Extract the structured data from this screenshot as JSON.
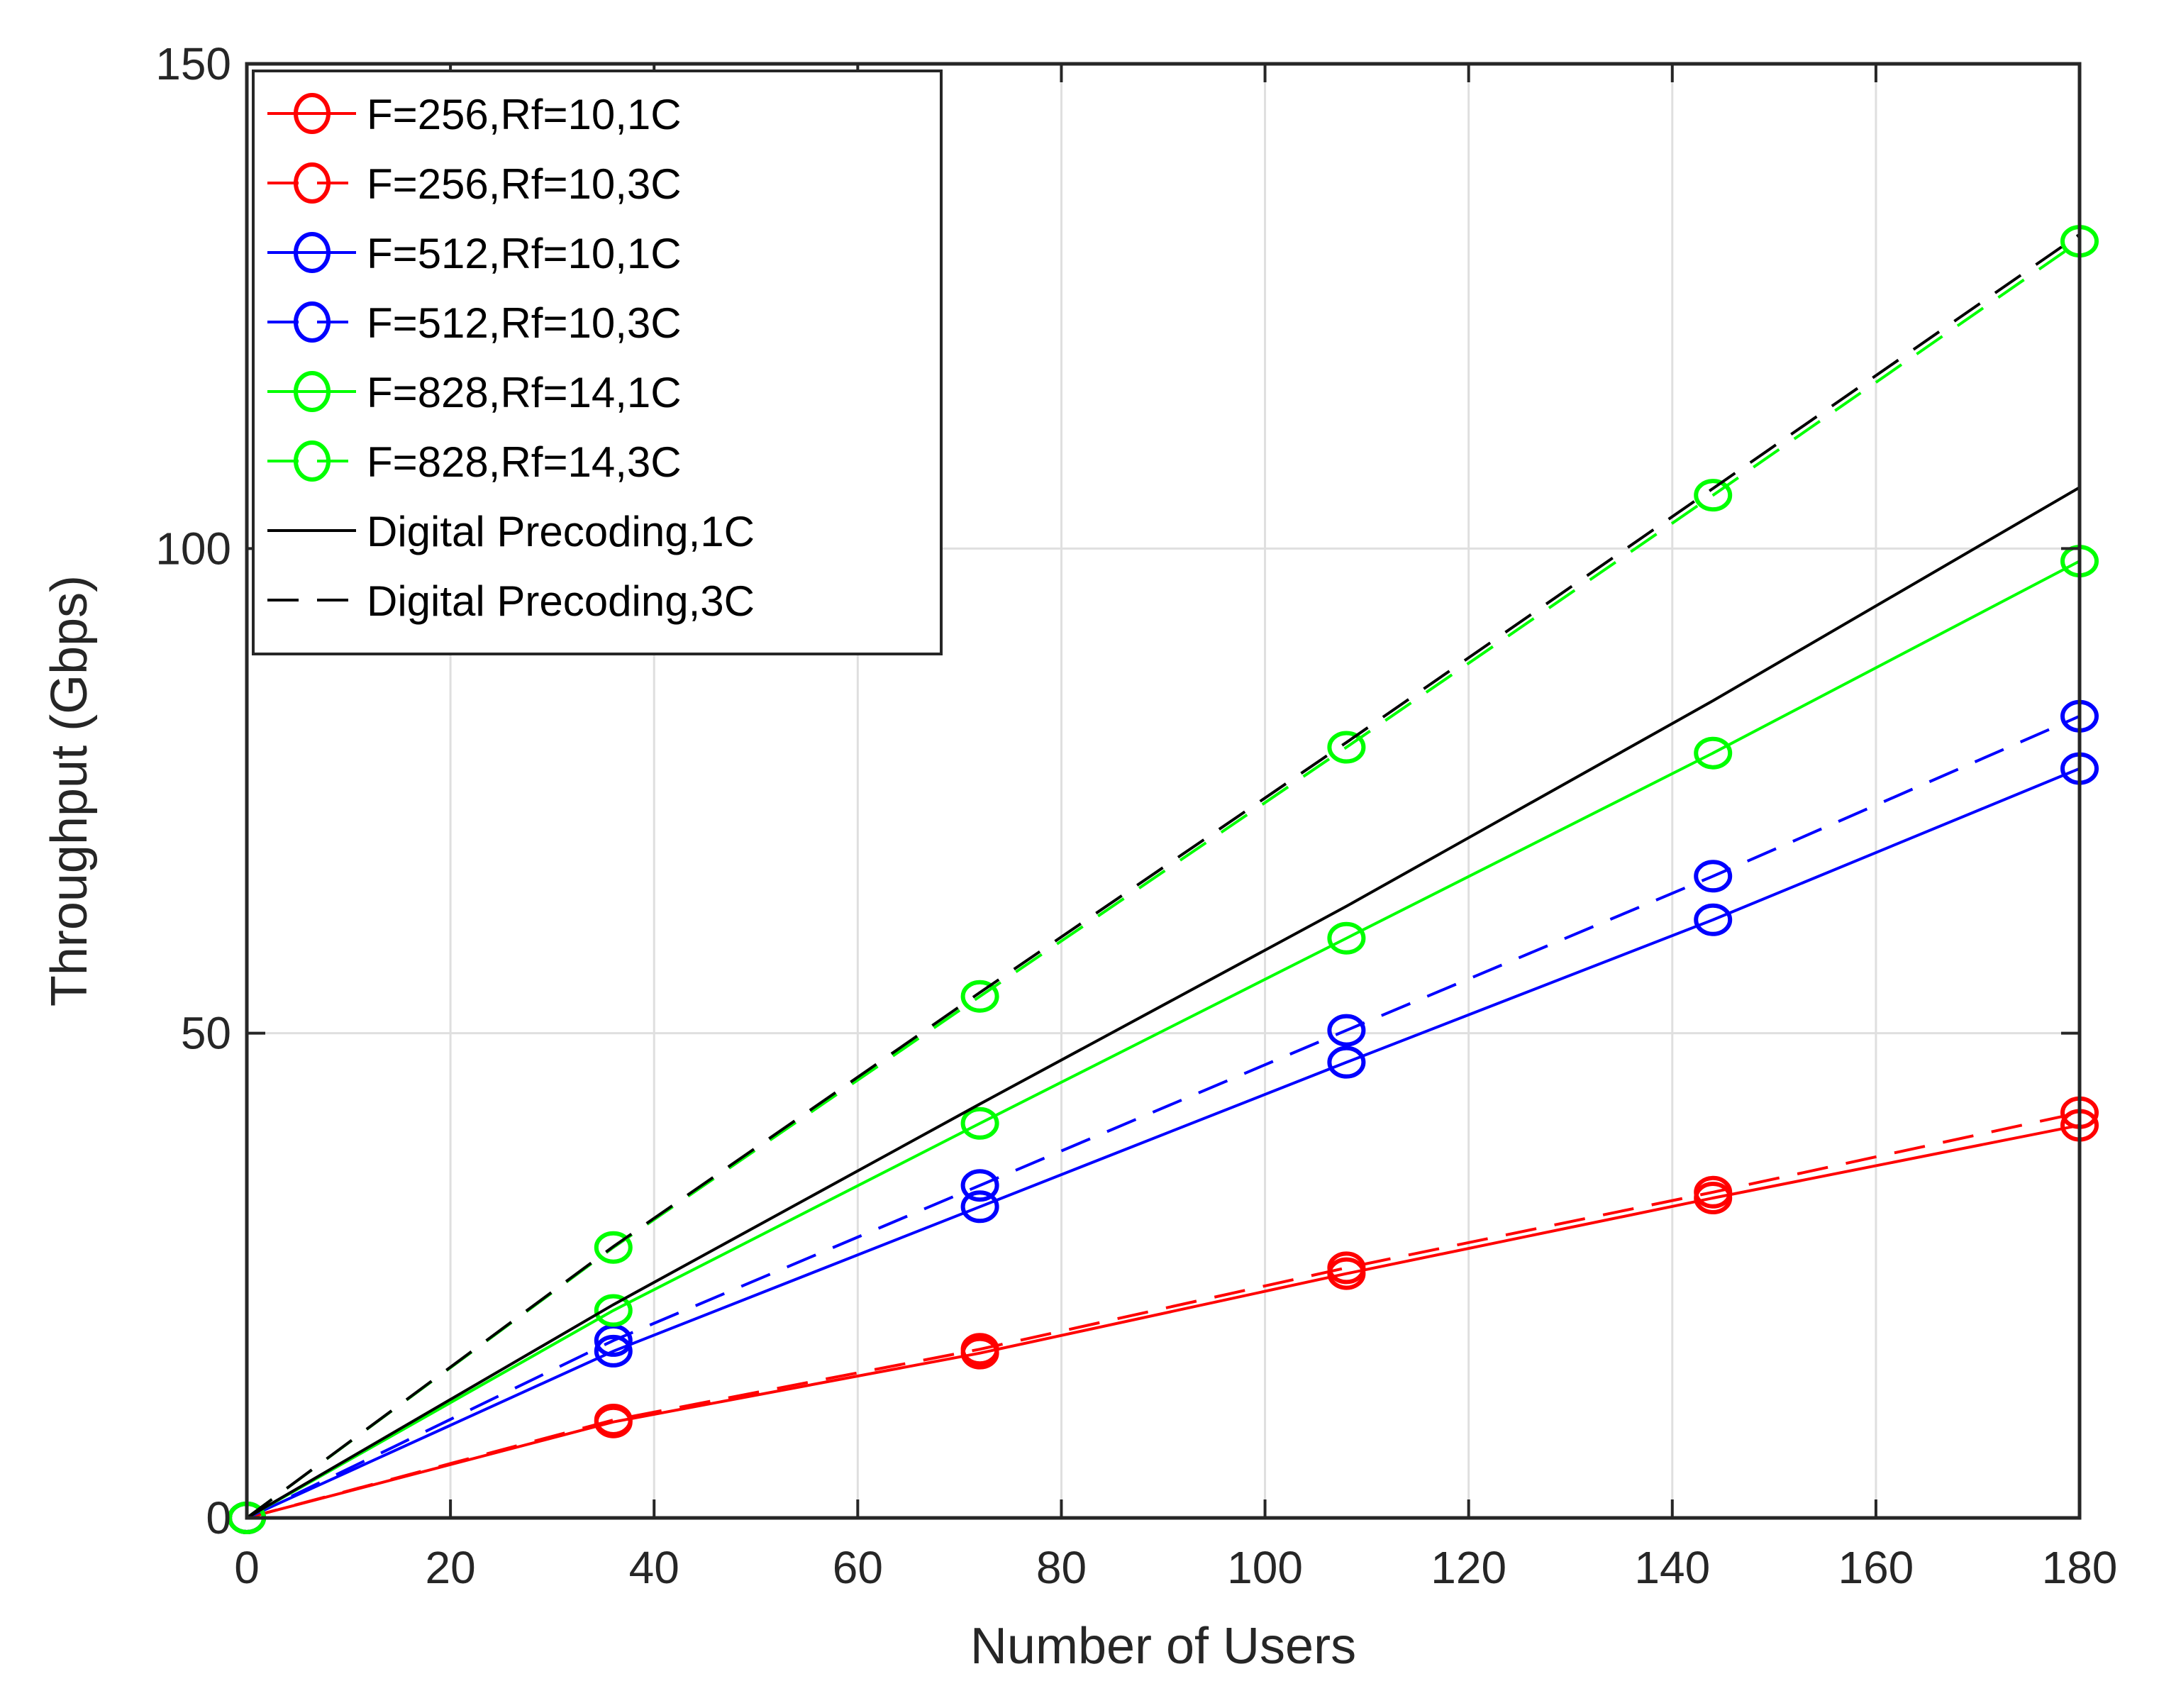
{
  "chart_data": {
    "type": "line",
    "title": "",
    "xlabel": "Number of Users",
    "ylabel": "Throughput (Gbps)",
    "xlim": [
      0,
      180
    ],
    "ylim": [
      0,
      150
    ],
    "xticks": [
      0,
      20,
      40,
      60,
      80,
      100,
      120,
      140,
      160,
      180
    ],
    "yticks": [
      0,
      50,
      100,
      150
    ],
    "grid": true,
    "legend_position": "upper-left",
    "x": [
      0,
      36,
      72,
      108,
      144,
      180
    ],
    "series": [
      {
        "name": "F=256,Rf=10,1C",
        "color": "#ff0000",
        "line_style": "solid",
        "marker": "circle",
        "values": [
          0,
          9.9,
          17.0,
          25.2,
          33.0,
          40.5
        ]
      },
      {
        "name": "F=256,Rf=10,3C",
        "color": "#ff0000",
        "line_style": "dashed",
        "marker": "circle",
        "values": [
          0,
          10.1,
          17.4,
          25.8,
          33.6,
          41.8
        ]
      },
      {
        "name": "F=512,Rf=10,1C",
        "color": "#0000ff",
        "line_style": "solid",
        "marker": "circle",
        "values": [
          0,
          17.2,
          32.1,
          47.0,
          61.7,
          77.3
        ]
      },
      {
        "name": "F=512,Rf=10,3C",
        "color": "#0000ff",
        "line_style": "dashed",
        "marker": "circle",
        "values": [
          0,
          18.3,
          34.3,
          50.3,
          66.2,
          82.7
        ]
      },
      {
        "name": "F=828,Rf=14,1C",
        "color": "#00ff00",
        "line_style": "solid",
        "marker": "circle",
        "values": [
          0,
          21.4,
          40.7,
          59.8,
          78.9,
          98.7
        ]
      },
      {
        "name": "F=828,Rf=14,3C",
        "color": "#00ff00",
        "line_style": "dashed",
        "marker": "circle",
        "values": [
          0,
          27.9,
          53.8,
          79.5,
          105.5,
          131.7
        ]
      },
      {
        "name": "Digital Precoding,1C",
        "color": "#000000",
        "line_style": "solid",
        "marker": "none",
        "values": [
          0,
          22.0,
          42.7,
          63.1,
          84.3,
          106.3
        ]
      },
      {
        "name": "Digital Precoding,3C",
        "color": "#000000",
        "line_style": "dashed",
        "marker": "none",
        "values": [
          0,
          28.0,
          54.2,
          80.0,
          106.2,
          132.4
        ]
      }
    ]
  },
  "axes": {
    "x_title": "Number of Users",
    "y_title": "Throughput (Gbps)",
    "x_tick_labels": [
      "0",
      "20",
      "40",
      "60",
      "80",
      "100",
      "120",
      "140",
      "160",
      "180"
    ],
    "y_tick_labels": [
      "0",
      "50",
      "100",
      "150"
    ]
  },
  "legend": {
    "items": [
      {
        "label": "F=256,Rf=10,1C",
        "color": "#ff0000",
        "dash": "solid",
        "marker": true
      },
      {
        "label": "F=256,Rf=10,3C",
        "color": "#ff0000",
        "dash": "dashed",
        "marker": true
      },
      {
        "label": "F=512,Rf=10,1C",
        "color": "#0000ff",
        "dash": "solid",
        "marker": true
      },
      {
        "label": "F=512,Rf=10,3C",
        "color": "#0000ff",
        "dash": "dashed",
        "marker": true
      },
      {
        "label": "F=828,Rf=14,1C",
        "color": "#00ff00",
        "dash": "solid",
        "marker": true
      },
      {
        "label": "F=828,Rf=14,3C",
        "color": "#00ff00",
        "dash": "dashed",
        "marker": true
      },
      {
        "label": "Digital Precoding,1C",
        "color": "#000000",
        "dash": "solid",
        "marker": false
      },
      {
        "label": "Digital Precoding,3C",
        "color": "#000000",
        "dash": "dashed",
        "marker": false
      }
    ]
  },
  "colors": {
    "red": "#ff0000",
    "blue": "#0000ff",
    "green": "#00ff00",
    "black": "#000000",
    "axis": "#262626",
    "grid": "#dfdfdf"
  }
}
